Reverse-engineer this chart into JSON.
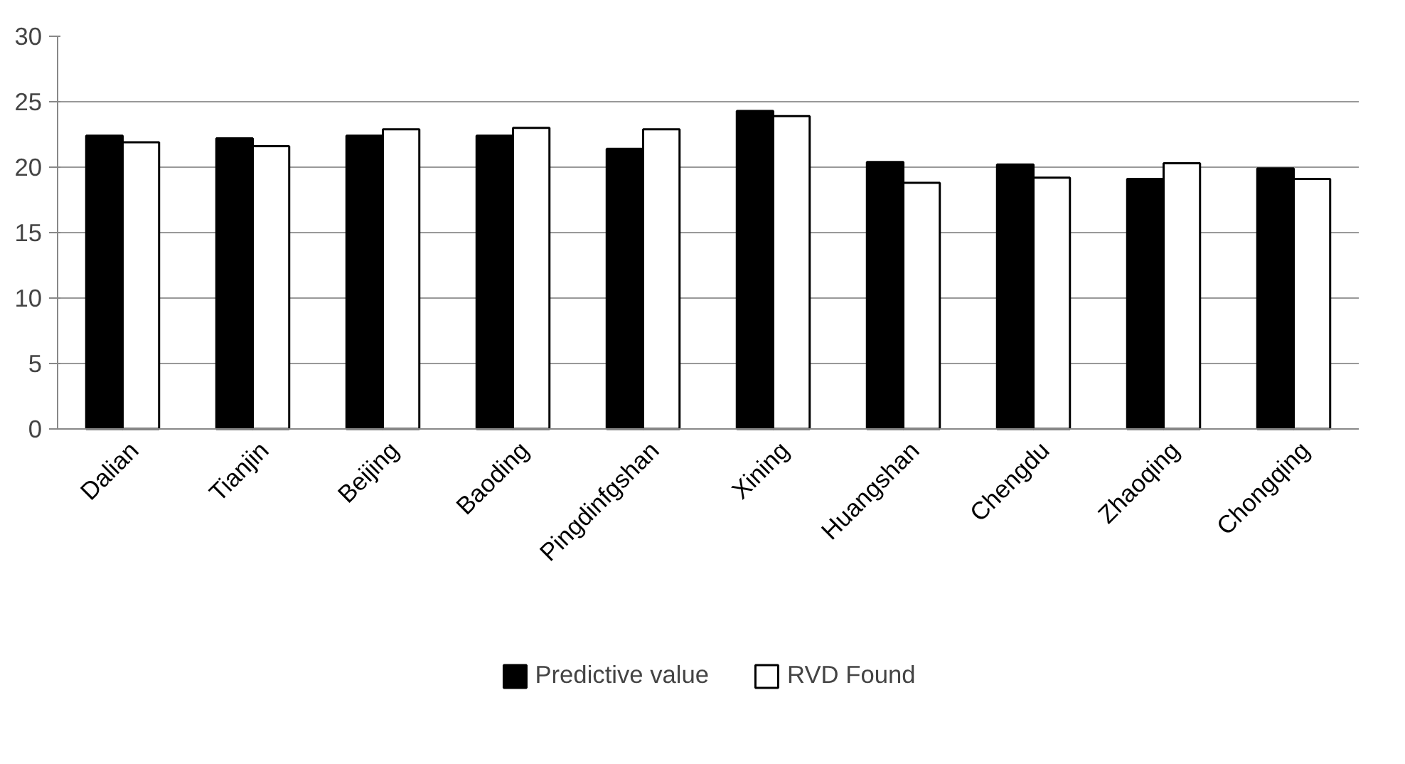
{
  "chart_data": {
    "type": "bar",
    "categories": [
      "Dalian",
      "Tianjin",
      "Beijing",
      "Baoding",
      "Pingdinfgshan",
      "Xining",
      "Huangshan",
      "Chengdu",
      "Zhaoqing",
      "Chongqing"
    ],
    "series": [
      {
        "name": "Predictive value",
        "color": "#000000",
        "values": [
          22.4,
          22.2,
          22.4,
          22.4,
          21.4,
          24.3,
          20.4,
          20.2,
          19.1,
          19.9
        ]
      },
      {
        "name": "RVD Found",
        "color": "#ffffff",
        "values": [
          21.9,
          21.6,
          22.9,
          23.0,
          22.9,
          23.9,
          18.8,
          19.2,
          20.3,
          19.1
        ]
      }
    ],
    "ylim": [
      0,
      30
    ],
    "yticks": [
      0,
      5,
      10,
      15,
      20,
      25,
      30
    ],
    "grid": "y",
    "legend": "bottom"
  }
}
